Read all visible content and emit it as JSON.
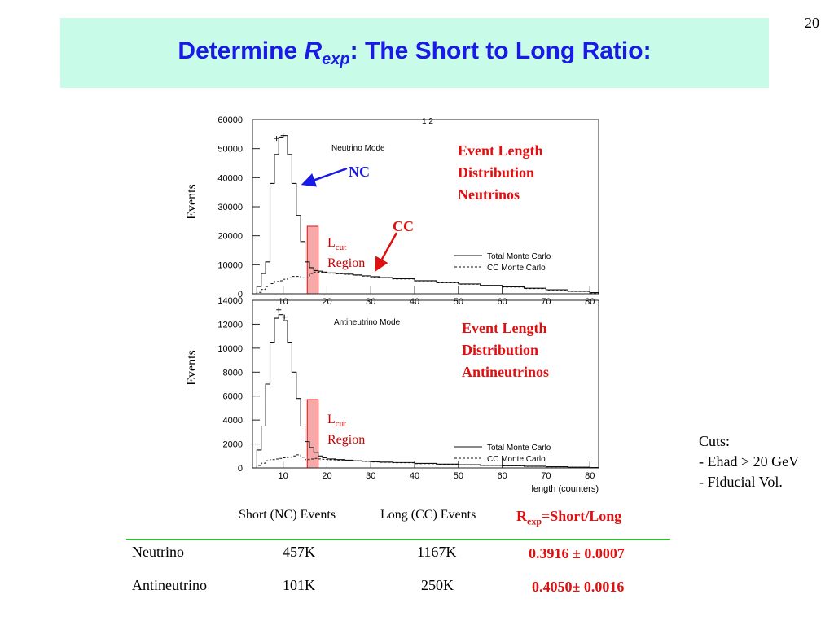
{
  "page_number": "20",
  "title": {
    "prefix": "Determine ",
    "symbol": "R",
    "symbol_sub": "exp",
    "suffix": ": The Short to Long Ratio:"
  },
  "chart_data": [
    {
      "type": "line",
      "title": "Neutrino Mode",
      "ylabel": "Events",
      "xlabel": "",
      "xlim": [
        3,
        82
      ],
      "ylim": [
        0,
        60000
      ],
      "x_ticks": [
        10,
        20,
        30,
        40,
        50,
        60,
        70,
        80
      ],
      "y_ticks": [
        0,
        10000,
        20000,
        30000,
        40000,
        50000,
        60000
      ],
      "y_tick_labels": [
        "0",
        "10000",
        "20000",
        "30000",
        "40000",
        "50000",
        "60000"
      ],
      "x": [
        3,
        4,
        5,
        6,
        7,
        8,
        9,
        10,
        11,
        12,
        13,
        14,
        15,
        16,
        17,
        18,
        19,
        20,
        22,
        24,
        26,
        28,
        30,
        32,
        35,
        40,
        45,
        50,
        55,
        60,
        65,
        70,
        75,
        80,
        82
      ],
      "series": [
        {
          "name": "Total Monte Carlo",
          "style": "solid",
          "values": [
            0,
            2500,
            7000,
            11000,
            38000,
            48000,
            54000,
            54500,
            48000,
            38000,
            27000,
            18000,
            11000,
            9000,
            8000,
            7800,
            7500,
            7200,
            7000,
            6800,
            6500,
            6200,
            5900,
            5600,
            5200,
            4500,
            3900,
            3400,
            2900,
            2400,
            1900,
            1400,
            900,
            400,
            0
          ]
        },
        {
          "name": "CC Monte Carlo",
          "style": "dashed",
          "values": [
            0,
            500,
            1500,
            2500,
            3500,
            4200,
            4500,
            5000,
            5500,
            6000,
            6000,
            5500,
            5500,
            7000,
            7500,
            7400,
            7300,
            7100,
            6900,
            6700,
            6400,
            6100,
            5800,
            5500,
            5100,
            4400,
            3800,
            3300,
            2800,
            2300,
            1800,
            1300,
            800,
            300,
            0
          ]
        }
      ],
      "legend": [
        "Total Monte Carlo",
        "CC Monte Carlo"
      ],
      "legend_position": "bottom-right",
      "annotations": {
        "nc_label": "NC",
        "cc_label": "CC",
        "lcut_label": "L",
        "lcut_sub": "cut",
        "region_label": "Region",
        "description": [
          "Event Length",
          "Distribution",
          "Neutrinos"
        ]
      },
      "lcut_range": [
        15.5,
        18
      ],
      "top_axis_fragment": "1  2"
    },
    {
      "type": "line",
      "title": "Antineutrino Mode",
      "ylabel": "Events",
      "xlabel": "length (counters)",
      "xlim": [
        3,
        82
      ],
      "ylim": [
        0,
        14000
      ],
      "x_ticks": [
        10,
        20,
        30,
        40,
        50,
        60,
        70,
        80
      ],
      "y_ticks": [
        0,
        2000,
        4000,
        6000,
        8000,
        10000,
        12000,
        14000
      ],
      "y_tick_labels": [
        "0",
        "2000",
        "4000",
        "6000",
        "8000",
        "10000",
        "12000",
        "14000"
      ],
      "x": [
        3,
        4,
        5,
        6,
        7,
        8,
        9,
        10,
        11,
        12,
        13,
        14,
        15,
        16,
        17,
        18,
        19,
        20,
        22,
        24,
        26,
        28,
        30,
        32,
        35,
        40,
        45,
        50,
        55,
        60,
        65,
        70,
        75,
        80,
        82
      ],
      "series": [
        {
          "name": "Total Monte Carlo",
          "style": "solid",
          "values": [
            0,
            1500,
            3500,
            7000,
            10500,
            12500,
            12800,
            12300,
            10500,
            8000,
            5800,
            3500,
            2200,
            1700,
            1300,
            1000,
            850,
            750,
            700,
            650,
            600,
            560,
            520,
            490,
            450,
            380,
            320,
            270,
            220,
            180,
            140,
            100,
            60,
            30,
            0
          ]
        },
        {
          "name": "CC Monte Carlo",
          "style": "dashed",
          "values": [
            0,
            200,
            400,
            600,
            700,
            750,
            800,
            850,
            900,
            1000,
            1100,
            900,
            700,
            750,
            800,
            760,
            720,
            680,
            650,
            620,
            580,
            540,
            500,
            470,
            430,
            360,
            300,
            250,
            210,
            170,
            130,
            90,
            55,
            25,
            0
          ]
        }
      ],
      "legend": [
        "Total Monte Carlo",
        "CC Monte Carlo"
      ],
      "legend_position": "bottom-right",
      "annotations": {
        "lcut_label": "L",
        "lcut_sub": "cut",
        "region_label": "Region",
        "description": [
          "Event Length",
          "Distribution",
          "Antineutrinos"
        ]
      },
      "lcut_range": [
        15.5,
        18
      ]
    }
  ],
  "cuts": {
    "heading": "Cuts:",
    "items": [
      "- Ehad > 20 GeV",
      "- Fiducial Vol."
    ]
  },
  "table": {
    "headers": {
      "short": "Short (NC) Events",
      "long": "Long (CC) Events",
      "ratio_prefix": "R",
      "ratio_sub": "exp",
      "ratio_suffix": "=Short/Long"
    },
    "rows": [
      {
        "label": "Neutrino",
        "short": "457K",
        "long": "1167K",
        "ratio": "0.3916 ± 0.0007"
      },
      {
        "label": "Antineutrino",
        "short": "101K",
        "long": "250K",
        "ratio": "0.4050± 0.0016"
      }
    ]
  },
  "colors": {
    "title_text": "#1a1ae6",
    "title_bg": "#c8fce8",
    "highlight_red": "#e01010",
    "lcut_fill": "#f7a8a8",
    "nc_arrow": "#1a1ae6",
    "table_rule": "#33bb33"
  }
}
